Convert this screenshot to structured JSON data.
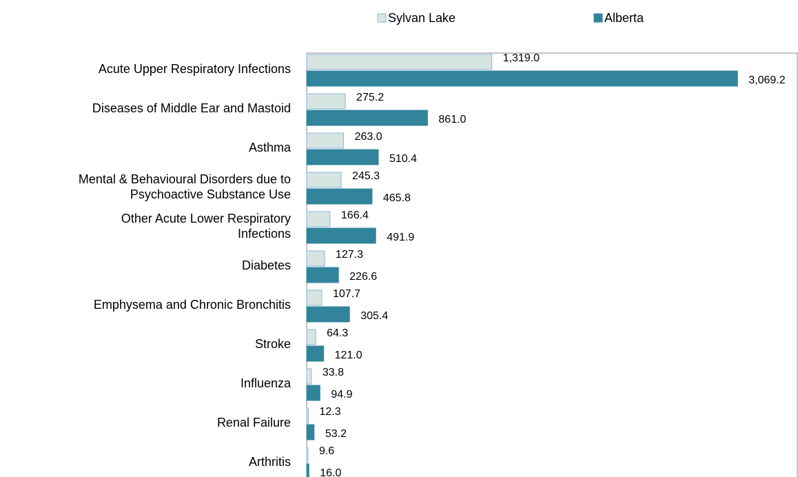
{
  "chart_data": {
    "type": "hbar",
    "categories": [
      "Acute Upper Respiratory Infections",
      "Diseases of Middle Ear and Mastoid",
      "Asthma",
      "Mental & Behavioural Disorders due to\nPsychoactive Substance Use",
      "Other Acute Lower Respiratory\nInfections",
      "Diabetes",
      "Emphysema and Chronic Bronchitis",
      "Stroke",
      "Influenza",
      "Renal Failure",
      "Arthritis"
    ],
    "series": [
      {
        "name": "Sylvan Lake",
        "color": "#d6e5e2",
        "values": [
          1319.0,
          275.2,
          263.0,
          245.3,
          166.4,
          127.3,
          107.7,
          64.3,
          33.8,
          12.3,
          9.6
        ],
        "value_labels": [
          "1,319.0",
          "275.2",
          "263.0",
          "245.3",
          "166.4",
          "127.3",
          "107.7",
          "64.3",
          "33.8",
          "12.3",
          "9.6"
        ]
      },
      {
        "name": "Alberta",
        "color": "#31849b",
        "values": [
          3069.2,
          861.0,
          510.4,
          465.8,
          491.9,
          226.6,
          305.4,
          121.0,
          94.9,
          53.2,
          16.0
        ],
        "value_labels": [
          "3,069.2",
          "861.0",
          "510.4",
          "465.8",
          "491.9",
          "226.6",
          "305.4",
          "121.0",
          "94.9",
          "53.2",
          "16.0"
        ]
      }
    ],
    "xlim": [
      0,
      3500
    ],
    "legend": "top"
  }
}
